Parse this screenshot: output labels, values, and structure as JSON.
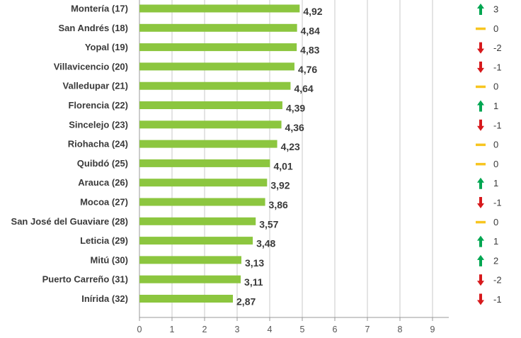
{
  "chart_data": {
    "type": "bar",
    "orientation": "horizontal",
    "categories": [
      "Montería (17)",
      "San Andrés (18)",
      "Yopal (19)",
      "Villavicencio (20)",
      "Valledupar (21)",
      "Florencia (22)",
      "Sincelejo (23)",
      "Riohacha (24)",
      "Quibdó (25)",
      "Arauca (26)",
      "Mocoa (27)",
      "San José del Guaviare (28)",
      "Leticia (29)",
      "Mitú (30)",
      "Puerto Carreño (31)",
      "Inírida (32)"
    ],
    "values": [
      4.92,
      4.84,
      4.83,
      4.76,
      4.64,
      4.39,
      4.36,
      4.23,
      4.01,
      3.92,
      3.86,
      3.57,
      3.48,
      3.13,
      3.11,
      2.87
    ],
    "value_labels": [
      "4,92",
      "4,84",
      "4,83",
      "4,76",
      "4,64",
      "4,39",
      "4,36",
      "4,23",
      "4,01",
      "3,92",
      "3,86",
      "3,57",
      "3,48",
      "3,13",
      "3,11",
      "2,87"
    ],
    "rank_change": [
      3,
      0,
      -2,
      -1,
      0,
      1,
      -1,
      0,
      0,
      1,
      -1,
      0,
      1,
      2,
      -2,
      -1
    ],
    "rank_change_labels": [
      "3",
      "0",
      "-2",
      "-1",
      "0",
      "1",
      "-1",
      "0",
      "0",
      "1",
      "-1",
      "0",
      "1",
      "2",
      "-2",
      "-1"
    ],
    "xlim": [
      0,
      9.5
    ],
    "xticks": [
      "0",
      "1",
      "2",
      "3",
      "4",
      "5",
      "6",
      "7",
      "8",
      "9"
    ],
    "grid": "vertical",
    "colors": {
      "bar": "#8cc63f",
      "up": "#00a651",
      "down": "#d7191c",
      "same": "#f7c520",
      "grid": "#c8c8c8",
      "axis": "#999999"
    }
  }
}
